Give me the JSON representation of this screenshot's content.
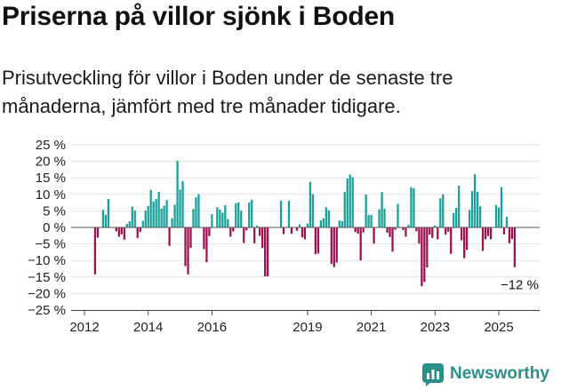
{
  "header": {
    "title": "Priserna på villor sjönk i Boden",
    "subtitle": "Prisutveckling för villor i Boden under de senaste tre månaderna, jämfört med tre månader tidigare."
  },
  "brand": {
    "name": "Newsworthy",
    "icon": "newsworthy-logo-icon",
    "color": "#2a8f8a"
  },
  "chart_data": {
    "type": "bar",
    "title": "",
    "xlabel": "",
    "ylabel": "",
    "ylim": [
      -25,
      25
    ],
    "y_ticks": [
      25,
      20,
      15,
      10,
      5,
      0,
      -5,
      -10,
      -15,
      -20,
      -25
    ],
    "y_tick_labels": [
      "25 %",
      "20 %",
      "15 %",
      "10 %",
      "5 %",
      "0 %",
      "−5 %",
      "−10 %",
      "−15 %",
      "−20 %",
      "−25 %"
    ],
    "x_tick_labels": [
      {
        "year": 2012,
        "label": "2012"
      },
      {
        "year": 2014,
        "label": "2014"
      },
      {
        "year": 2016,
        "label": "2016"
      },
      {
        "year": 2019,
        "label": "2019"
      },
      {
        "year": 2021,
        "label": "2021"
      },
      {
        "year": 2023,
        "label": "2023"
      },
      {
        "year": 2025,
        "label": "2025"
      }
    ],
    "colors": {
      "positive": "#1aa09a",
      "negative": "#a0104e"
    },
    "grid": true,
    "start_month": "2012-05",
    "values": [
      -14.2,
      -3.1,
      null,
      5.3,
      3.8,
      8.6,
      null,
      null,
      -1.2,
      -2.8,
      -2.1,
      -3.7,
      1.1,
      1.9,
      6.3,
      5.1,
      -3.2,
      -1.4,
      2.0,
      5.1,
      6.5,
      11.3,
      7.9,
      8.6,
      10.8,
      5.7,
      6.6,
      8.3,
      -5.6,
      2.8,
      6.9,
      20.2,
      11.5,
      14.0,
      -11.7,
      -14.2,
      -6.2,
      5.6,
      9.1,
      10.1,
      null,
      -6.6,
      -10.5,
      -2.6,
      4.0,
      null,
      6.1,
      5.4,
      4.5,
      6.7,
      2.5,
      -2.8,
      -1.2,
      7.3,
      7.6,
      5.1,
      -4.7,
      -0.9,
      7.6,
      8.4,
      -4.8,
      0.6,
      -2.6,
      -6.2,
      -14.8,
      -14.8,
      null,
      null,
      null,
      null,
      8.1,
      -2.0,
      null,
      8.1,
      -1.9,
      null,
      -1.0,
      0.9,
      -3.0,
      -3.6,
      1.2,
      13.8,
      10.1,
      -8.1,
      -7.9,
      2.1,
      2.8,
      6.1,
      5.2,
      -11.0,
      -12.0,
      -10.6,
      2.1,
      1.9,
      10.7,
      14.8,
      16.0,
      15.2,
      -1.4,
      -1.9,
      -10.0,
      -1.5,
      9.9,
      3.8,
      3.8,
      -4.9,
      null,
      5.5,
      10.7,
      5.7,
      -1.6,
      -2.9,
      -7.3,
      -0.7,
      7.1,
      null,
      -0.8,
      -2.8,
      0.8,
      12.2,
      11.9,
      -1.2,
      -4.9,
      -17.8,
      -16.5,
      -12.1,
      -2.2,
      -3.2,
      0.6,
      -3.6,
      8.8,
      10.0,
      -2.2,
      -1.3,
      -8.0,
      4.4,
      5.9,
      12.6,
      -3.9,
      -9.3,
      -6.8,
      5.3,
      11.0,
      16.1,
      10.8,
      6.4,
      -7.1,
      -3.6,
      -2.6,
      -3.6,
      null,
      6.8,
      6.0,
      12.2,
      -2.1,
      3.2,
      -4.8,
      -3.5,
      -12.0
    ],
    "annotation": {
      "text": "−12 %",
      "value": -12.0,
      "month": "2025-08"
    }
  }
}
